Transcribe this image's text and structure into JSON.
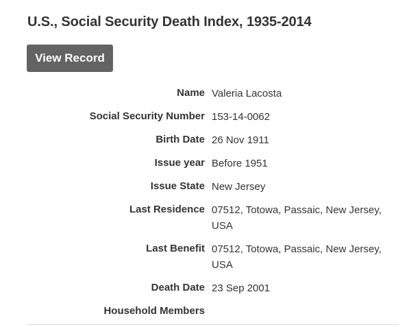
{
  "header": {
    "title": "U.S., Social Security Death Index, 1935-2014"
  },
  "actions": {
    "view_record_label": "View Record"
  },
  "record": {
    "name": {
      "label": "Name",
      "value": "Valeria Lacosta"
    },
    "ssn": {
      "label": "Social Security Number",
      "value": "153-14-0062"
    },
    "birth_date": {
      "label": "Birth Date",
      "value": "26 Nov 1911"
    },
    "issue_year": {
      "label": "Issue year",
      "value": "Before 1951"
    },
    "issue_state": {
      "label": "Issue State",
      "value": "New Jersey"
    },
    "last_residence": {
      "label": "Last Residence",
      "value": "07512, Totowa, Passaic, New Jersey, USA"
    },
    "last_benefit": {
      "label": "Last Benefit",
      "value": "07512, Totowa, Passaic, New Jersey, USA"
    },
    "death_date": {
      "label": "Death Date",
      "value": "23 Sep 2001"
    },
    "household_members": {
      "label": "Household Members",
      "value": ""
    }
  },
  "colors": {
    "button_bg": "#636363",
    "text": "#333333",
    "divider": "#d9d9d9"
  }
}
